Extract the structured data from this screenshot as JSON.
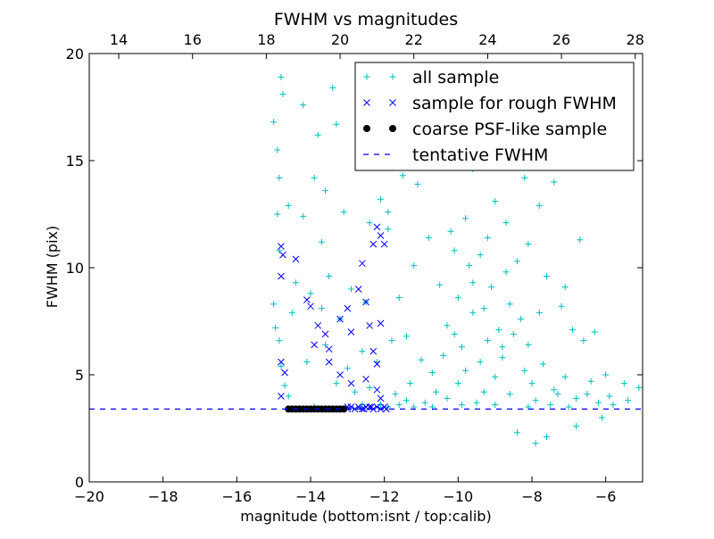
{
  "chart_data": {
    "type": "scatter",
    "title": "FWHM vs magnitudes",
    "xlabel": "magnitude (bottom:isnt / top:calib)",
    "ylabel": "FWHM (pix)",
    "xlim": [
      -20,
      -5
    ],
    "ylim": [
      0,
      20
    ],
    "x_ticks": [
      -20,
      -18,
      -16,
      -14,
      -12,
      -10,
      -8,
      -6
    ],
    "x_tick_labels": [
      "−20",
      "−18",
      "−16",
      "−14",
      "−12",
      "−10",
      "−8",
      "−6"
    ],
    "y_ticks": [
      0,
      5,
      10,
      15,
      20
    ],
    "y_tick_labels": [
      "0",
      "5",
      "10",
      "15",
      "20"
    ],
    "top_axis": {
      "xlim": [
        13.2,
        28.2
      ],
      "ticks": [
        14,
        16,
        18,
        20,
        22,
        24,
        26,
        28
      ],
      "tick_labels": [
        "14",
        "16",
        "18",
        "20",
        "22",
        "24",
        "26",
        "28"
      ]
    },
    "grid": false,
    "legend_position": "top-right",
    "series": [
      {
        "name": "all sample",
        "marker": "plus",
        "color": "#00bfbf",
        "points": [
          [
            -15.0,
            16.8
          ],
          [
            -14.8,
            18.9
          ],
          [
            -14.75,
            18.1
          ],
          [
            -14.9,
            15.5
          ],
          [
            -14.85,
            14.2
          ],
          [
            -14.9,
            12.5
          ],
          [
            -14.85,
            10.8
          ],
          [
            -15.0,
            8.3
          ],
          [
            -14.95,
            7.2
          ],
          [
            -14.85,
            6.6
          ],
          [
            -14.8,
            5.4
          ],
          [
            -14.7,
            4.5
          ],
          [
            -14.6,
            4.0
          ],
          [
            -14.2,
            17.6
          ],
          [
            -13.8,
            16.2
          ],
          [
            -13.4,
            18.4
          ],
          [
            -13.3,
            16.7
          ],
          [
            -13.6,
            13.6
          ],
          [
            -13.9,
            14.2
          ],
          [
            -14.2,
            12.4
          ],
          [
            -13.7,
            11.2
          ],
          [
            -14.4,
            9.3
          ],
          [
            -14.0,
            8.8
          ],
          [
            -13.7,
            8.1
          ],
          [
            -13.2,
            7.6
          ],
          [
            -12.9,
            9.0
          ],
          [
            -12.5,
            8.4
          ],
          [
            -13.6,
            6.4
          ],
          [
            -14.1,
            5.6
          ],
          [
            -13.0,
            5.3
          ],
          [
            -12.6,
            6.1
          ],
          [
            -12.2,
            5.6
          ],
          [
            -11.8,
            6.6
          ],
          [
            -11.4,
            6.8
          ],
          [
            -11.0,
            5.7
          ],
          [
            -11.6,
            8.6
          ],
          [
            -11.2,
            10.1
          ],
          [
            -11.9,
            12.6
          ],
          [
            -11.5,
            14.3
          ],
          [
            -12.1,
            13.2
          ],
          [
            -11.1,
            13.9
          ],
          [
            -10.8,
            11.4
          ],
          [
            -10.5,
            9.2
          ],
          [
            -10.3,
            7.3
          ],
          [
            -10.0,
            8.6
          ],
          [
            -9.9,
            6.3
          ],
          [
            -9.6,
            7.9
          ],
          [
            -9.4,
            5.6
          ],
          [
            -9.2,
            6.6
          ],
          [
            -9.0,
            4.9
          ],
          [
            -8.8,
            5.8
          ],
          [
            -8.5,
            6.9
          ],
          [
            -8.2,
            5.2
          ],
          [
            -8.0,
            4.6
          ],
          [
            -7.7,
            5.5
          ],
          [
            -7.4,
            4.3
          ],
          [
            -7.1,
            4.9
          ],
          [
            -6.8,
            3.9
          ],
          [
            -6.5,
            4.1
          ],
          [
            -6.2,
            3.7
          ],
          [
            -5.9,
            4.0
          ],
          [
            -5.4,
            3.8
          ],
          [
            -5.1,
            4.4
          ],
          [
            -10.2,
            11.7
          ],
          [
            -9.8,
            12.3
          ],
          [
            -9.4,
            10.6
          ],
          [
            -9.0,
            13.1
          ],
          [
            -8.7,
            12.1
          ],
          [
            -8.4,
            10.3
          ],
          [
            -8.1,
            11.1
          ],
          [
            -7.8,
            12.9
          ],
          [
            -9.6,
            14.6
          ],
          [
            -8.9,
            15.3
          ],
          [
            -8.6,
            15.8
          ],
          [
            -10.6,
            16.6
          ],
          [
            -10.9,
            15.2
          ],
          [
            -9.3,
            16.1
          ],
          [
            -7.6,
            9.6
          ],
          [
            -7.2,
            8.2
          ],
          [
            -6.9,
            7.1
          ],
          [
            -6.6,
            6.6
          ],
          [
            -6.3,
            7.0
          ],
          [
            -8.3,
            7.6
          ],
          [
            -9.1,
            9.1
          ],
          [
            -9.7,
            10.1
          ],
          [
            -10.1,
            6.9
          ],
          [
            -10.4,
            5.9
          ],
          [
            -10.7,
            5.1
          ],
          [
            -11.3,
            4.6
          ],
          [
            -9.3,
            4.2
          ],
          [
            -8.6,
            4.1
          ],
          [
            -7.9,
            3.8
          ],
          [
            -7.3,
            4.1
          ],
          [
            -8.4,
            2.3
          ],
          [
            -7.9,
            1.8
          ],
          [
            -7.6,
            2.1
          ],
          [
            -6.8,
            2.6
          ],
          [
            -6.1,
            3.0
          ],
          [
            -9.5,
            3.7
          ],
          [
            -9.9,
            3.6
          ],
          [
            -10.3,
            3.9
          ],
          [
            -10.9,
            3.7
          ],
          [
            -11.6,
            3.6
          ],
          [
            -11.9,
            3.5
          ],
          [
            -7.1,
            9.1
          ],
          [
            -6.7,
            11.3
          ],
          [
            -7.4,
            14.0
          ],
          [
            -8.2,
            14.2
          ],
          [
            -9.3,
            8.1
          ],
          [
            -8.9,
            7.1
          ],
          [
            -8.6,
            8.3
          ],
          [
            -8.8,
            6.3
          ],
          [
            -9.8,
            5.2
          ],
          [
            -10.0,
            4.6
          ],
          [
            -8.1,
            6.4
          ],
          [
            -7.8,
            7.9
          ],
          [
            -8.7,
            9.8
          ],
          [
            -10.1,
            10.8
          ],
          [
            -9.6,
            9.3
          ],
          [
            -9.2,
            11.4
          ],
          [
            -11.9,
            11.8
          ],
          [
            -12.4,
            12.1
          ],
          [
            -13.1,
            12.6
          ],
          [
            -13.5,
            9.6
          ],
          [
            -14.6,
            12.9
          ],
          [
            -14.5,
            7.9
          ],
          [
            -13.3,
            4.6
          ],
          [
            -12.8,
            4.2
          ],
          [
            -12.4,
            4.4
          ],
          [
            -11.7,
            4.1
          ],
          [
            -11.4,
            3.8
          ],
          [
            -10.6,
            4.2
          ],
          [
            -12.1,
            3.6
          ],
          [
            -12.6,
            3.6
          ],
          [
            -5.5,
            4.6
          ],
          [
            -6.0,
            5.0
          ],
          [
            -6.4,
            4.7
          ],
          [
            -5.8,
            3.6
          ],
          [
            -7.0,
            3.5
          ],
          [
            -7.5,
            3.6
          ],
          [
            -8.1,
            3.5
          ],
          [
            -9.0,
            3.6
          ],
          [
            -10.7,
            3.5
          ],
          [
            -11.2,
            3.5
          ],
          [
            -13.9,
            3.5
          ]
        ]
      },
      {
        "name": "sample for rough FWHM",
        "marker": "x",
        "color": "#0000ff",
        "points": [
          [
            -14.8,
            11.0
          ],
          [
            -14.75,
            10.6
          ],
          [
            -14.8,
            9.6
          ],
          [
            -14.4,
            10.4
          ],
          [
            -14.1,
            8.5
          ],
          [
            -14.0,
            8.2
          ],
          [
            -13.8,
            7.3
          ],
          [
            -13.6,
            6.9
          ],
          [
            -13.9,
            6.4
          ],
          [
            -13.5,
            6.2
          ],
          [
            -13.2,
            7.6
          ],
          [
            -13.0,
            8.1
          ],
          [
            -12.9,
            7.0
          ],
          [
            -12.7,
            9.0
          ],
          [
            -12.6,
            10.2
          ],
          [
            -12.5,
            8.4
          ],
          [
            -12.4,
            7.3
          ],
          [
            -12.3,
            6.1
          ],
          [
            -12.2,
            5.5
          ],
          [
            -12.1,
            7.4
          ],
          [
            -12.3,
            11.1
          ],
          [
            -12.2,
            11.9
          ],
          [
            -12.1,
            11.5
          ],
          [
            -12.0,
            11.1
          ],
          [
            -13.5,
            5.6
          ],
          [
            -13.2,
            5.0
          ],
          [
            -12.9,
            4.6
          ],
          [
            -12.5,
            4.8
          ],
          [
            -12.2,
            4.3
          ],
          [
            -12.1,
            3.9
          ],
          [
            -14.8,
            5.6
          ],
          [
            -14.7,
            5.1
          ],
          [
            -14.8,
            4.0
          ],
          [
            -13.0,
            3.5
          ],
          [
            -12.9,
            3.5
          ],
          [
            -12.8,
            3.4
          ],
          [
            -12.7,
            3.5
          ],
          [
            -12.6,
            3.4
          ],
          [
            -12.5,
            3.5
          ],
          [
            -12.4,
            3.5
          ],
          [
            -12.3,
            3.4
          ],
          [
            -12.2,
            3.5
          ],
          [
            -12.1,
            3.4
          ],
          [
            -12.0,
            3.5
          ],
          [
            -11.95,
            3.4
          ],
          [
            -13.0,
            3.4
          ],
          [
            -12.35,
            3.5
          ],
          [
            -12.55,
            3.4
          ]
        ]
      },
      {
        "name": "coarse PSF-like sample",
        "marker": "circle",
        "color": "#000000",
        "points": [
          [
            -14.6,
            3.4
          ],
          [
            -14.5,
            3.4
          ],
          [
            -14.4,
            3.4
          ],
          [
            -14.3,
            3.4
          ],
          [
            -14.2,
            3.4
          ],
          [
            -14.1,
            3.4
          ],
          [
            -14.0,
            3.4
          ],
          [
            -13.9,
            3.4
          ],
          [
            -13.8,
            3.4
          ],
          [
            -13.7,
            3.4
          ],
          [
            -13.6,
            3.4
          ],
          [
            -13.5,
            3.4
          ],
          [
            -13.4,
            3.4
          ],
          [
            -13.3,
            3.4
          ],
          [
            -13.2,
            3.4
          ],
          [
            -13.1,
            3.4
          ]
        ]
      },
      {
        "name": "tentative FWHM",
        "marker": "dashed-line",
        "color": "#0000ff",
        "y": 3.4
      }
    ]
  }
}
